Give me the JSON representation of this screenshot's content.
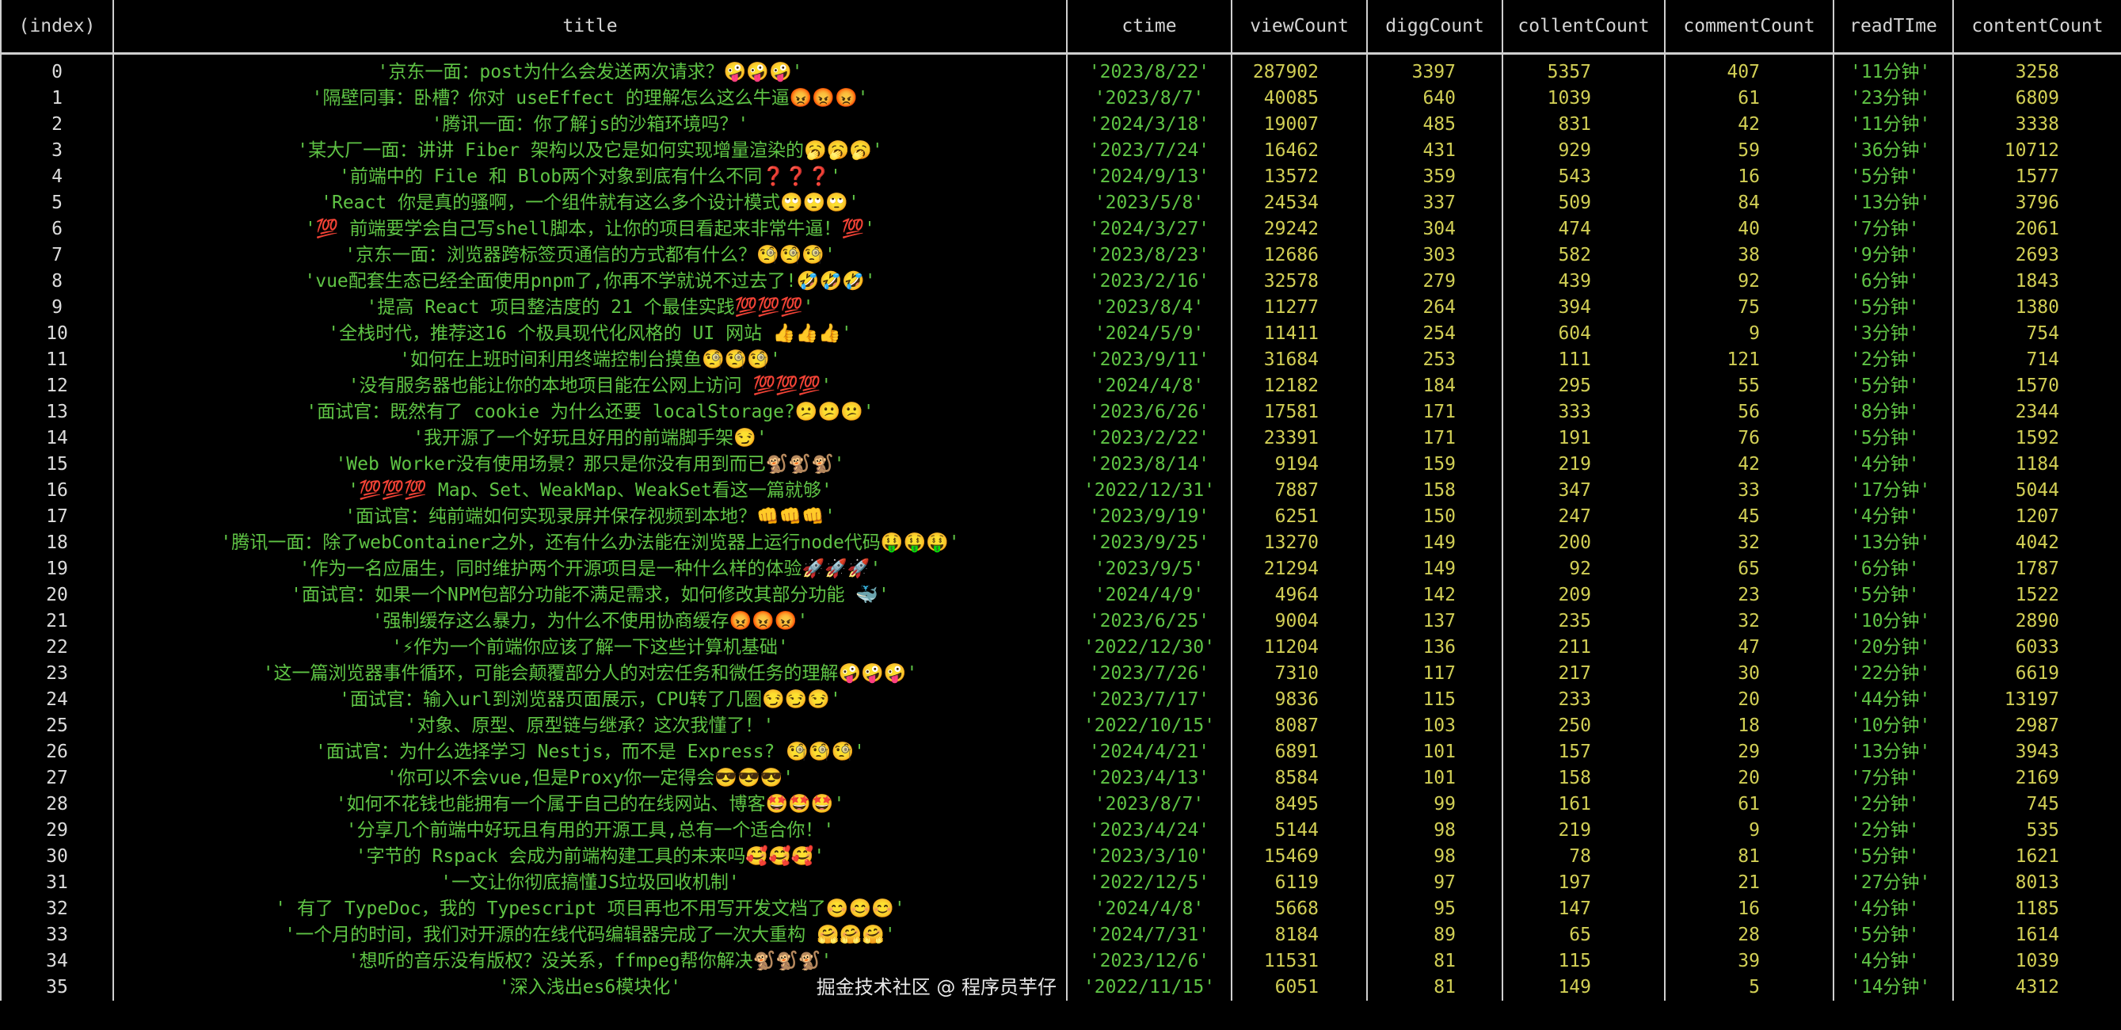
{
  "columns": [
    "(index)",
    "title",
    "ctime",
    "viewCount",
    "diggCount",
    "collentCount",
    "commentCount",
    "readTIme",
    "contentCount"
  ],
  "rows": [
    [
      "0",
      "'京东一面：post为什么会发送两次请求？🤪🤪🤪'",
      "'2023/8/22'",
      "287902",
      "3397",
      "5357",
      "407",
      "'11分钟'",
      "3258"
    ],
    [
      "1",
      "'隔壁同事：卧槽？你对 useEffect 的理解怎么这么牛逼😡😡😡'",
      "'2023/8/7'",
      "40085",
      "640",
      "1039",
      "61",
      "'23分钟'",
      "6809"
    ],
    [
      "2",
      "'腾讯一面：你了解js的沙箱环境吗？'",
      "'2024/3/18'",
      "19007",
      "485",
      "831",
      "42",
      "'11分钟'",
      "3338"
    ],
    [
      "3",
      "'某大厂一面：讲讲 Fiber 架构以及它是如何实现增量渲染的🥱🥱🥱'",
      "'2023/7/24'",
      "16462",
      "431",
      "929",
      "59",
      "'36分钟'",
      "10712"
    ],
    [
      "4",
      "'前端中的 File 和 Blob两个对象到底有什么不同❓❓❓'",
      "'2024/9/13'",
      "13572",
      "359",
      "543",
      "16",
      "'5分钟'",
      "1577"
    ],
    [
      "5",
      "'React 你是真的骚啊，一个组件就有这么多个设计模式🙄🙄🙄'",
      "'2023/5/8'",
      "24534",
      "337",
      "509",
      "84",
      "'13分钟'",
      "3796"
    ],
    [
      "6",
      "'💯 前端要学会自己写shell脚本，让你的项目看起来非常牛逼！💯'",
      "'2024/3/27'",
      "29242",
      "304",
      "474",
      "40",
      "'7分钟'",
      "2061"
    ],
    [
      "7",
      "'京东一面：浏览器跨标签页通信的方式都有什么？🧐🧐🧐'",
      "'2023/8/23'",
      "12686",
      "303",
      "582",
      "38",
      "'9分钟'",
      "2693"
    ],
    [
      "8",
      "'vue配套生态已经全面使用pnpm了,你再不学就说不过去了!🤣🤣🤣'",
      "'2023/2/16'",
      "32578",
      "279",
      "439",
      "92",
      "'6分钟'",
      "1843"
    ],
    [
      "9",
      "'提高 React 项目整洁度的 21 个最佳实践💯💯💯'",
      "'2023/8/4'",
      "11277",
      "264",
      "394",
      "75",
      "'5分钟'",
      "1380"
    ],
    [
      "10",
      "'全栈时代，推荐这16 个极具现代化风格的 UI 网站 👍👍👍'",
      "'2024/5/9'",
      "11411",
      "254",
      "604",
      "9",
      "'3分钟'",
      "754"
    ],
    [
      "11",
      "'如何在上班时间利用终端控制台摸鱼🧐🧐🧐'",
      "'2023/9/11'",
      "31684",
      "253",
      "111",
      "121",
      "'2分钟'",
      "714"
    ],
    [
      "12",
      "'没有服务器也能让你的本地项目能在公网上访问 💯💯💯'",
      "'2024/4/8'",
      "12182",
      "184",
      "295",
      "55",
      "'5分钟'",
      "1570"
    ],
    [
      "13",
      "'面试官：既然有了 cookie 为什么还要 localStorage?😕😕😕'",
      "'2023/6/26'",
      "17581",
      "171",
      "333",
      "56",
      "'8分钟'",
      "2344"
    ],
    [
      "14",
      "'我开源了一个好玩且好用的前端脚手架😏'",
      "'2023/2/22'",
      "23391",
      "171",
      "191",
      "76",
      "'5分钟'",
      "1592"
    ],
    [
      "15",
      "'Web Worker没有使用场景？那只是你没有用到而已🐒🐒🐒'",
      "'2023/8/14'",
      "9194",
      "159",
      "219",
      "42",
      "'4分钟'",
      "1184"
    ],
    [
      "16",
      "'💯💯💯 Map、Set、WeakMap、WeakSet看这一篇就够'",
      "'2022/12/31'",
      "7887",
      "158",
      "347",
      "33",
      "'17分钟'",
      "5044"
    ],
    [
      "17",
      "'面试官：纯前端如何实现录屏并保存视频到本地？👊👊👊'",
      "'2023/9/19'",
      "6251",
      "150",
      "247",
      "45",
      "'4分钟'",
      "1207"
    ],
    [
      "18",
      "'腾讯一面：除了webContainer之外，还有什么办法能在浏览器上运行node代码🤑🤑🤑'",
      "'2023/9/25'",
      "13270",
      "149",
      "200",
      "32",
      "'13分钟'",
      "4042"
    ],
    [
      "19",
      "'作为一名应届生，同时维护两个开源项目是一种什么样的体验🚀🚀🚀'",
      "'2023/9/5'",
      "21294",
      "149",
      "92",
      "65",
      "'6分钟'",
      "1787"
    ],
    [
      "20",
      "'面试官：如果一个NPM包部分功能不满足需求，如何修改其部分功能 🐳'",
      "'2024/4/9'",
      "4964",
      "142",
      "209",
      "23",
      "'5分钟'",
      "1522"
    ],
    [
      "21",
      "'强制缓存这么暴力，为什么不使用协商缓存😡😡😡'",
      "'2023/6/25'",
      "9004",
      "137",
      "235",
      "32",
      "'10分钟'",
      "2890"
    ],
    [
      "22",
      "'⚡作为一个前端你应该了解一下这些计算机基础'",
      "'2022/12/30'",
      "11204",
      "136",
      "211",
      "47",
      "'20分钟'",
      "6033"
    ],
    [
      "23",
      "'这一篇浏览器事件循环，可能会颠覆部分人的对宏任务和微任务的理解🤪🤪🤪'",
      "'2023/7/26'",
      "7310",
      "117",
      "217",
      "30",
      "'22分钟'",
      "6619"
    ],
    [
      "24",
      "'面试官：输入url到浏览器页面展示，CPU转了几圈😏😏😏'",
      "'2023/7/17'",
      "9836",
      "115",
      "233",
      "20",
      "'44分钟'",
      "13197"
    ],
    [
      "25",
      "'对象、原型、原型链与继承？这次我懂了！'",
      "'2022/10/15'",
      "8087",
      "103",
      "250",
      "18",
      "'10分钟'",
      "2987"
    ],
    [
      "26",
      "'面试官：为什么选择学习 Nestjs，而不是 Express? 🧐🧐🧐'",
      "'2024/4/21'",
      "6891",
      "101",
      "157",
      "29",
      "'13分钟'",
      "3943"
    ],
    [
      "27",
      "'你可以不会vue,但是Proxy你一定得会😎😎😎'",
      "'2023/4/13'",
      "8584",
      "101",
      "158",
      "20",
      "'7分钟'",
      "2169"
    ],
    [
      "28",
      "'如何不花钱也能拥有一个属于自己的在线网站、博客🤩🤩🤩'",
      "'2023/8/7'",
      "8495",
      "99",
      "161",
      "61",
      "'2分钟'",
      "745"
    ],
    [
      "29",
      "'分享几个前端中好玩且有用的开源工具,总有一个适合你！'",
      "'2023/4/24'",
      "5144",
      "98",
      "219",
      "9",
      "'2分钟'",
      "535"
    ],
    [
      "30",
      "'字节的 Rspack 会成为前端构建工具的未来吗🥰🥰🥰'",
      "'2023/3/10'",
      "15469",
      "98",
      "78",
      "81",
      "'5分钟'",
      "1621"
    ],
    [
      "31",
      "'一文让你彻底搞懂JS垃圾回收机制'",
      "'2022/12/5'",
      "6119",
      "97",
      "197",
      "21",
      "'27分钟'",
      "8013"
    ],
    [
      "32",
      "' 有了 TypeDoc，我的 Typescript 项目再也不用写开发文档了😊😊😊'",
      "'2024/4/8'",
      "5668",
      "95",
      "147",
      "16",
      "'4分钟'",
      "1185"
    ],
    [
      "33",
      "'一个月的时间，我们对开源的在线代码编辑器完成了一次大重构 🤗🤗🤗'",
      "'2024/7/31'",
      "8184",
      "89",
      "65",
      "28",
      "'5分钟'",
      "1614"
    ],
    [
      "34",
      "'想听的音乐没有版权？没关系，ffmpeg帮你解决🐒🐒🐒'",
      "'2023/12/6'",
      "11531",
      "81",
      "115",
      "39",
      "'4分钟'",
      "1039"
    ],
    [
      "35",
      "'深入浅出es6模块化'",
      "'2022/11/15'",
      "6051",
      "81",
      "149",
      "5",
      "'14分钟'",
      "4312"
    ]
  ],
  "watermark": "掘金技术社区 @ 程序员芋仔",
  "colors": {
    "background": "#000000",
    "string": "#5fc445",
    "number": "#d2cf55",
    "header": "#d4d4d4",
    "border": "#cfcfcf"
  }
}
